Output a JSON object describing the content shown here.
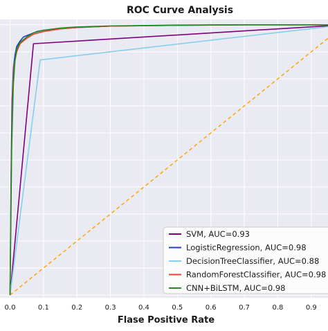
{
  "chart_data": {
    "type": "line",
    "title": "ROC Curve Analysis",
    "xlabel": "Flase Positive Rate",
    "ylabel": "",
    "xlim": [
      -0.03,
      0.95
    ],
    "ylim": [
      -0.01,
      1.02
    ],
    "x_ticks": [
      0.0,
      0.1,
      0.2,
      0.3,
      0.4,
      0.5,
      0.6,
      0.7,
      0.8,
      0.9
    ],
    "x_tick_labels": [
      "0.0",
      "0.1",
      "0.2",
      "0.3",
      "0.4",
      "0.5",
      "0.6",
      "0.7",
      "0.8",
      "0.9"
    ],
    "grid": true,
    "background": "#eaeaf2",
    "legend_position": "lower-right",
    "series": [
      {
        "name": "SVM, AUC=0.93",
        "color": "#800080",
        "x": [
          0.0,
          0.07,
          1.0
        ],
        "y": [
          0.0,
          0.93,
          1.0
        ]
      },
      {
        "name": "LogisticRegression, AUC=0.98",
        "color": "#1f3fbf",
        "x": [
          0.0,
          0.003,
          0.006,
          0.01,
          0.015,
          0.02,
          0.03,
          0.04,
          0.06,
          0.08,
          0.1,
          0.15,
          0.2,
          0.3,
          0.5,
          0.7,
          1.0
        ],
        "y": [
          0.0,
          0.45,
          0.72,
          0.84,
          0.89,
          0.92,
          0.94,
          0.955,
          0.965,
          0.975,
          0.98,
          0.985,
          0.99,
          0.995,
          0.998,
          1.0,
          1.0
        ]
      },
      {
        "name": "DecisionTreeClassifier, AUC=0.88",
        "color": "#87ceeb",
        "x": [
          0.0,
          0.09,
          1.0
        ],
        "y": [
          0.0,
          0.87,
          1.0
        ]
      },
      {
        "name": "RandomForestClassifier, AUC=0.98",
        "color": "#e8462a",
        "x": [
          0.0,
          0.004,
          0.008,
          0.012,
          0.02,
          0.03,
          0.05,
          0.07,
          0.1,
          0.15,
          0.2,
          0.3,
          0.5,
          0.7,
          1.0
        ],
        "y": [
          0.0,
          0.5,
          0.75,
          0.85,
          0.9,
          0.93,
          0.95,
          0.965,
          0.975,
          0.985,
          0.99,
          0.995,
          0.998,
          1.0,
          1.0
        ]
      },
      {
        "name": "CNN+BiLSTM, AUC=0.98",
        "color": "#228b22",
        "x": [
          0.0,
          0.005,
          0.01,
          0.015,
          0.02,
          0.03,
          0.05,
          0.07,
          0.1,
          0.15,
          0.2,
          0.3,
          0.5,
          0.7,
          1.0
        ],
        "y": [
          0.0,
          0.55,
          0.78,
          0.87,
          0.91,
          0.935,
          0.955,
          0.97,
          0.98,
          0.988,
          0.992,
          0.996,
          0.999,
          1.0,
          1.0
        ]
      }
    ],
    "baseline": {
      "color": "#ffa500",
      "x": [
        0.0,
        1.0
      ],
      "y": [
        0.0,
        1.0
      ]
    }
  }
}
